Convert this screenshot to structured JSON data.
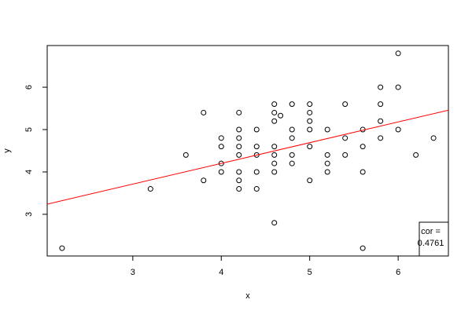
{
  "chart_data": {
    "type": "scatter",
    "xlabel": "x",
    "ylabel": "y",
    "xlim": [
      2.032,
      6.568
    ],
    "ylim": [
      2.016,
      6.984
    ],
    "xticks": [
      3,
      4,
      5,
      6
    ],
    "yticks": [
      3,
      4,
      5,
      6
    ],
    "color": "#000000",
    "x": [
      2.2,
      3.2,
      3.6,
      3.8,
      3.8,
      4.0,
      4.0,
      4.0,
      4.0,
      4.2,
      4.2,
      4.2,
      4.2,
      4.2,
      4.2,
      4.2,
      4.2,
      4.4,
      4.4,
      4.4,
      4.4,
      4.4,
      4.6,
      4.6,
      4.6,
      4.6,
      4.6,
      4.6,
      4.6,
      4.6,
      4.67,
      4.8,
      4.8,
      4.8,
      4.8,
      4.8,
      5.0,
      5.0,
      5.0,
      5.0,
      5.0,
      5.0,
      5.2,
      5.2,
      5.2,
      5.2,
      5.4,
      5.4,
      5.4,
      5.6,
      5.6,
      5.6,
      5.6,
      5.8,
      5.8,
      5.8,
      5.8,
      6.0,
      6.0,
      6.0,
      6.2,
      6.4
    ],
    "y": [
      2.2,
      3.6,
      4.4,
      5.4,
      3.8,
      4.8,
      4.6,
      4.2,
      4.0,
      5.4,
      5.0,
      4.8,
      4.6,
      4.4,
      4.0,
      3.8,
      3.6,
      5.0,
      4.6,
      4.4,
      4.0,
      3.6,
      5.6,
      5.4,
      5.2,
      4.6,
      4.4,
      4.2,
      4.0,
      2.8,
      5.33,
      5.0,
      4.8,
      4.4,
      4.2,
      5.6,
      5.6,
      5.4,
      5.2,
      5.0,
      4.6,
      3.8,
      5.0,
      4.4,
      4.2,
      4.0,
      5.6,
      4.8,
      4.4,
      5.0,
      4.6,
      4.0,
      2.2,
      6.0,
      5.6,
      5.2,
      4.8,
      6.8,
      6.0,
      5.0,
      4.4,
      4.8
    ],
    "abline": {
      "intercept": 2.246,
      "slope": 0.489,
      "color": "#ff0000"
    },
    "legend": {
      "position": "bottomright",
      "text": [
        "cor =",
        "0.4761"
      ]
    }
  }
}
